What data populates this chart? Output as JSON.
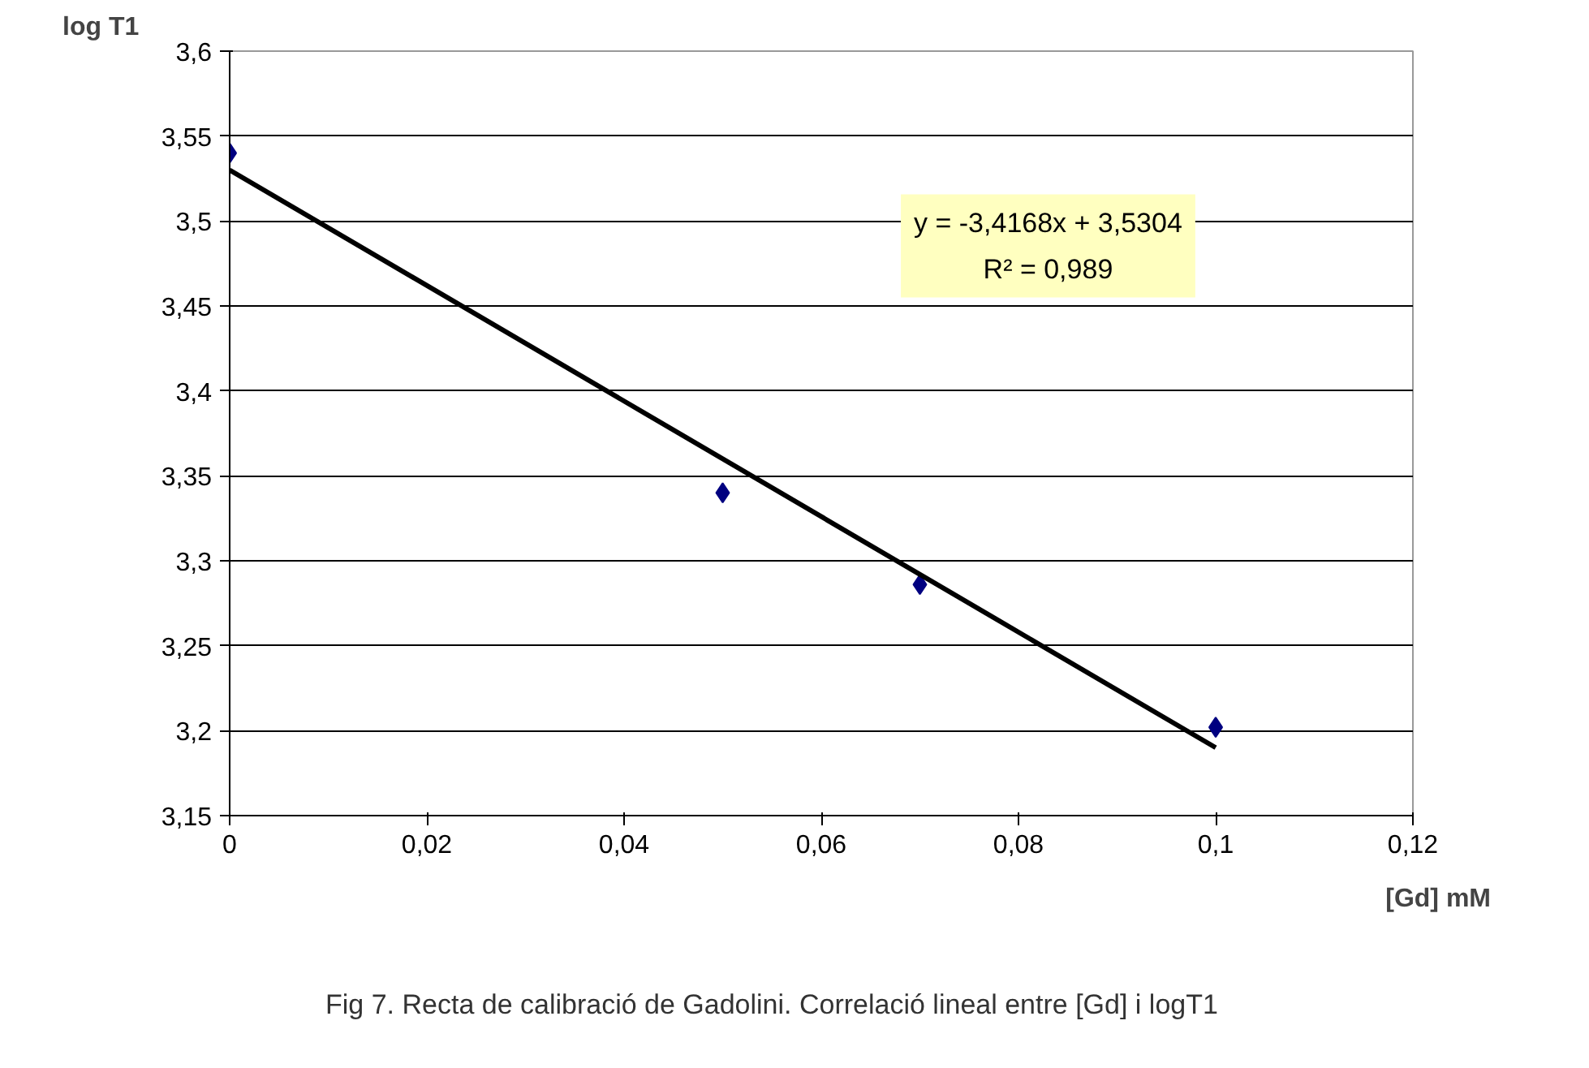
{
  "chart_data": {
    "type": "scatter",
    "xlabel": "[Gd] mM",
    "ylabel": "log T1",
    "x": [
      0,
      0.05,
      0.07,
      0.1
    ],
    "series": [
      {
        "color": "#000080",
        "marker": "diamond",
        "values": [
          3.54,
          3.34,
          3.286,
          3.202
        ]
      },
      {
        "type": "line",
        "color": "#000000",
        "x": [
          0,
          0.1
        ],
        "values": [
          3.53,
          3.19
        ],
        "line_style": "solid",
        "marker": "none"
      }
    ],
    "xlim": [
      0,
      0.12
    ],
    "xticks": [
      0,
      {
        "value": 0.02,
        "label": "0,02"
      },
      {
        "value": 0.04,
        "label": "0,04"
      },
      {
        "value": 0.06,
        "label": "0,06"
      },
      {
        "value": 0.08,
        "label": "0,08"
      },
      {
        "value": 0.1,
        "label": "0,1"
      },
      {
        "value": 0.12,
        "label": "0,12"
      }
    ],
    "ylim": [
      3.15,
      3.6
    ],
    "yticks": [
      {
        "value": 3.15,
        "label": "3,15"
      },
      {
        "value": 3.2,
        "label": "3,2"
      },
      {
        "value": 3.25,
        "label": "3,25"
      },
      {
        "value": 3.3,
        "label": "3,3"
      },
      {
        "value": 3.35,
        "label": "3,35"
      },
      {
        "value": 3.4,
        "label": "3,4"
      },
      {
        "value": 3.45,
        "label": "3,45"
      },
      {
        "value": 3.5,
        "label": "3,5"
      },
      {
        "value": 3.55,
        "label": "3,55"
      },
      {
        "value": 3.6,
        "label": "3,6"
      }
    ],
    "grid": "y",
    "annotations": [
      "y = -3,4168x + 3,5304",
      "R² = 0,989",
      "Fig 7. Recta de calibració de Gadolini. Correlació lineal entre [Gd] i logT1"
    ]
  }
}
